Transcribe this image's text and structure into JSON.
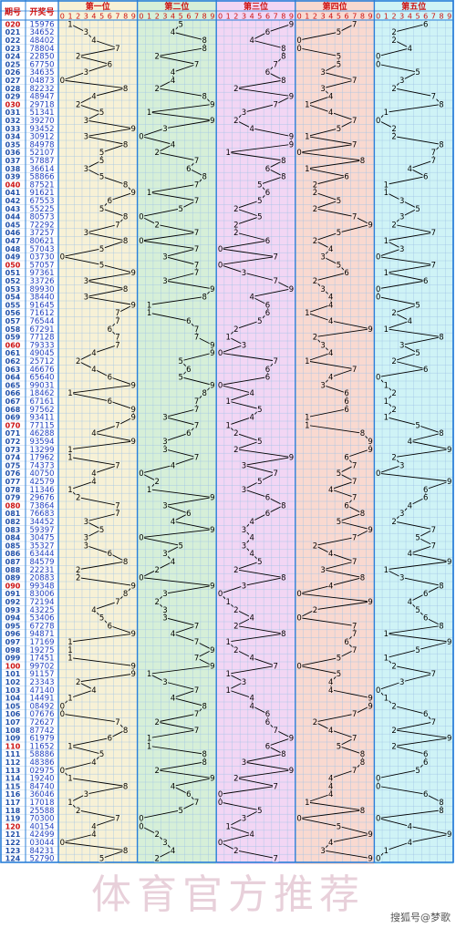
{
  "header": {
    "col_period": "期号",
    "col_number": "开奖号"
  },
  "watermark": "体育官方推荐",
  "source": "搜狐号@梦歌",
  "chart_data": {
    "type": "line",
    "positions": [
      "第一位",
      "第二位",
      "第三位",
      "第四位",
      "第五位"
    ],
    "digits": [
      "0",
      "1",
      "2",
      "3",
      "4",
      "5",
      "6",
      "7",
      "8",
      "9"
    ],
    "periods": [
      "020",
      "021",
      "022",
      "023",
      "024",
      "025",
      "026",
      "027",
      "028",
      "029",
      "030",
      "031",
      "032",
      "033",
      "034",
      "035",
      "036",
      "037",
      "038",
      "039",
      "040",
      "041",
      "042",
      "043",
      "044",
      "045",
      "046",
      "047",
      "048",
      "049",
      "050",
      "051",
      "052",
      "053",
      "054",
      "055",
      "056",
      "057",
      "058",
      "059",
      "060",
      "061",
      "062",
      "063",
      "064",
      "065",
      "066",
      "067",
      "068",
      "069",
      "070",
      "071",
      "072",
      "073",
      "074",
      "075",
      "076",
      "077",
      "078",
      "079",
      "080",
      "081",
      "082",
      "083",
      "084",
      "085",
      "086",
      "087",
      "088",
      "089",
      "090",
      "091",
      "092",
      "093",
      "094",
      "095",
      "096",
      "097",
      "098",
      "099",
      "100",
      "101",
      "102",
      "103",
      "104",
      "105",
      "106",
      "107",
      "108",
      "109",
      "110",
      "111",
      "112",
      "113",
      "114",
      "115",
      "116",
      "117",
      "118",
      "119",
      "120",
      "121",
      "122",
      "123",
      "124"
    ],
    "numbers": [
      "15976",
      "34652",
      "48402",
      "78804",
      "22850",
      "67750",
      "34635",
      "04873",
      "82232",
      "48947",
      "29718",
      "51341",
      "39270",
      "93452",
      "30912",
      "84978",
      "52107",
      "57887",
      "36614",
      "58866",
      "87521",
      "91621",
      "67553",
      "55225",
      "80573",
      "72292",
      "37257",
      "80621",
      "57043",
      "03730",
      "57057",
      "97361",
      "33726",
      "89930",
      "38440",
      "91645",
      "71612",
      "76544",
      "67291",
      "77128",
      "79333",
      "49045",
      "25712",
      "46676",
      "65640",
      "99031",
      "18462",
      "67161",
      "97562",
      "93411",
      "77115",
      "46288",
      "93594",
      "13299",
      "17962",
      "74373",
      "40750",
      "42579",
      "11346",
      "29676",
      "73864",
      "76683",
      "34452",
      "59397",
      "30475",
      "35327",
      "63444",
      "84579",
      "22231",
      "20883",
      "99348",
      "83006",
      "72194",
      "43225",
      "53406",
      "67278",
      "94871",
      "17169",
      "19275",
      "17451",
      "99702",
      "91157",
      "23343",
      "47140",
      "14491",
      "08492",
      "07676",
      "72627",
      "87742",
      "61979",
      "11652",
      "58886",
      "48386",
      "02975",
      "19240",
      "84740",
      "36046",
      "17018",
      "25588",
      "70300",
      "40154",
      "42499",
      "03044",
      "84231",
      "52790"
    ],
    "colors": {
      "band_1": "#f7f1d6",
      "band_2": "#d6efd8",
      "band_3": "#f2d6f4",
      "band_4": "#f9d9d0",
      "band_5": "#cff3f6",
      "border": "#2a7fd9",
      "header_red": "#cc1111",
      "period_red": "#cc1111",
      "period_blue": "#1f4fa8",
      "number_blue": "#1f3fbf",
      "line": "#000000",
      "grid": "#9fc3e6"
    }
  }
}
